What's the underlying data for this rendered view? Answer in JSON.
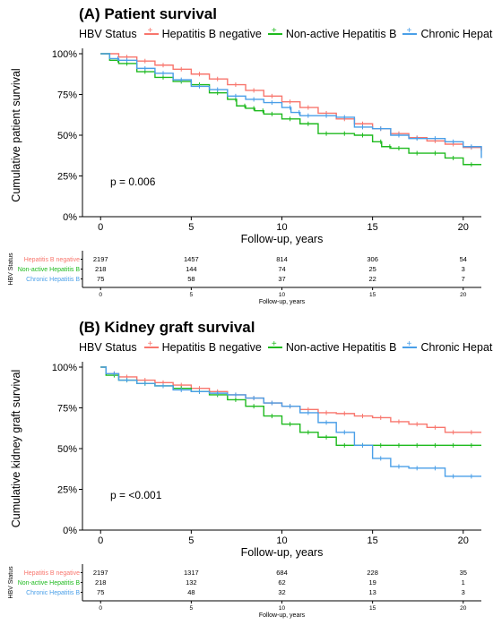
{
  "colors": {
    "neg": "#F8766D",
    "nonactive": "#1EBA1E",
    "chronic": "#4A9FE8"
  },
  "panels": [
    {
      "title": "(A) Patient survival",
      "legend_title": "HBV Status",
      "legend": [
        "Hepatitis B negative",
        "Non-active Hepatitis B",
        "Chronic Hepatitis B"
      ],
      "ylabel": "Cumulative patient survival",
      "xlabel": "Follow-up, years",
      "pvalue": "p = 0.006",
      "risk_table": {
        "side_label": "HBV Status",
        "row_labels": [
          "Hepatitis B negative",
          "Non-active Hepatitis B",
          "Chronic Hepatitis B"
        ],
        "rows": [
          [
            "2197",
            "1457",
            "814",
            "306",
            "54"
          ],
          [
            "218",
            "144",
            "74",
            "25",
            "3"
          ],
          [
            "75",
            "58",
            "37",
            "22",
            "7"
          ]
        ],
        "xticks": [
          "0",
          "5",
          "10",
          "15",
          "20"
        ],
        "xlabel": "Follow-up, years"
      }
    },
    {
      "title": "(B) Kidney graft survival",
      "legend_title": "HBV Status",
      "legend": [
        "Hepatitis B negative",
        "Non-active Hepatitis B",
        "Chronic Hepatitis B"
      ],
      "ylabel": "Cumulative kidney graft survival",
      "xlabel": "Follow-up, years",
      "pvalue": "p = <0.001",
      "risk_table": {
        "side_label": "HBV Status",
        "row_labels": [
          "Hepatitis B negative",
          "Non-active Hepatitis B",
          "Chronic Hepatitis B"
        ],
        "rows": [
          [
            "2197",
            "1317",
            "684",
            "228",
            "35"
          ],
          [
            "218",
            "132",
            "62",
            "19",
            "1"
          ],
          [
            "75",
            "48",
            "32",
            "13",
            "3"
          ]
        ],
        "xticks": [
          "0",
          "5",
          "10",
          "15",
          "20"
        ],
        "xlabel": "Follow-up, years"
      }
    }
  ],
  "chart_data": [
    {
      "type": "line",
      "title": "(A) Patient survival",
      "xlabel": "Follow-up, years",
      "ylabel": "Cumulative patient survival",
      "xlim": [
        -1,
        21
      ],
      "ylim": [
        0,
        1
      ],
      "xticks": [
        "0",
        "5",
        "10",
        "15",
        "20"
      ],
      "yticks": [
        "0%",
        "25%",
        "50%",
        "75%",
        "100%"
      ],
      "grid": false,
      "legend_position": "top",
      "series": [
        {
          "name": "Hepatitis B negative",
          "color_key": "neg",
          "x": [
            0,
            1,
            2,
            3,
            4,
            5,
            6,
            7,
            8,
            9,
            10,
            11,
            12,
            13,
            14,
            15,
            16,
            17,
            18,
            19,
            20,
            21
          ],
          "y": [
            1.0,
            0.98,
            0.955,
            0.93,
            0.905,
            0.875,
            0.845,
            0.81,
            0.775,
            0.74,
            0.705,
            0.67,
            0.635,
            0.6,
            0.57,
            0.54,
            0.51,
            0.485,
            0.465,
            0.445,
            0.425,
            0.405
          ]
        },
        {
          "name": "Non-active Hepatitis B",
          "color_key": "nonactive",
          "x": [
            0,
            0.5,
            1,
            2,
            3,
            4,
            5,
            6,
            7,
            7.5,
            8,
            8.5,
            9,
            10,
            11,
            12,
            13,
            14,
            15,
            15.5,
            16,
            17,
            18,
            19,
            20,
            21
          ],
          "y": [
            1.0,
            0.96,
            0.94,
            0.89,
            0.855,
            0.83,
            0.81,
            0.76,
            0.72,
            0.68,
            0.665,
            0.65,
            0.63,
            0.6,
            0.57,
            0.51,
            0.51,
            0.5,
            0.46,
            0.43,
            0.42,
            0.39,
            0.39,
            0.36,
            0.32,
            0.32
          ]
        },
        {
          "name": "Chronic Hepatitis B",
          "color_key": "chronic",
          "x": [
            0,
            0.5,
            1,
            2,
            3,
            4,
            5,
            6,
            7,
            8,
            9,
            10,
            10.5,
            11,
            12,
            13,
            14,
            15,
            16,
            17,
            18,
            19,
            20,
            21
          ],
          "y": [
            1.0,
            0.97,
            0.96,
            0.91,
            0.88,
            0.84,
            0.8,
            0.78,
            0.74,
            0.72,
            0.7,
            0.67,
            0.64,
            0.62,
            0.62,
            0.61,
            0.55,
            0.54,
            0.5,
            0.48,
            0.48,
            0.46,
            0.43,
            0.36
          ]
        }
      ]
    },
    {
      "type": "line",
      "title": "(B) Kidney graft survival",
      "xlabel": "Follow-up, years",
      "ylabel": "Cumulative kidney graft survival",
      "xlim": [
        -1,
        21
      ],
      "ylim": [
        0,
        1
      ],
      "xticks": [
        "0",
        "5",
        "10",
        "15",
        "20"
      ],
      "yticks": [
        "0%",
        "25%",
        "50%",
        "75%",
        "100%"
      ],
      "grid": false,
      "legend_position": "top",
      "series": [
        {
          "name": "Hepatitis B negative",
          "color_key": "neg",
          "x": [
            0,
            0.3,
            1,
            2,
            3,
            4,
            5,
            6,
            7,
            8,
            9,
            10,
            11,
            12,
            13,
            14,
            15,
            16,
            17,
            18,
            19,
            20,
            21
          ],
          "y": [
            1.0,
            0.96,
            0.94,
            0.92,
            0.905,
            0.89,
            0.87,
            0.85,
            0.83,
            0.81,
            0.78,
            0.76,
            0.74,
            0.72,
            0.715,
            0.7,
            0.69,
            0.665,
            0.65,
            0.63,
            0.6,
            0.6,
            0.6
          ]
        },
        {
          "name": "Non-active Hepatitis B",
          "color_key": "nonactive",
          "x": [
            0,
            0.3,
            1,
            2,
            3,
            4,
            5,
            6,
            7,
            8,
            9,
            10,
            11,
            12,
            13,
            14,
            15,
            16,
            17,
            18,
            19,
            20,
            21
          ],
          "y": [
            1.0,
            0.95,
            0.92,
            0.9,
            0.885,
            0.87,
            0.85,
            0.83,
            0.8,
            0.76,
            0.7,
            0.65,
            0.6,
            0.57,
            0.52,
            0.52,
            0.52,
            0.52,
            0.52,
            0.52,
            0.52,
            0.52,
            0.52
          ]
        },
        {
          "name": "Chronic Hepatitis B",
          "color_key": "chronic",
          "x": [
            0,
            0.3,
            1,
            2,
            3,
            4,
            5,
            6,
            7,
            8,
            9,
            10,
            11,
            12,
            13,
            14,
            15,
            16,
            17,
            18,
            19,
            20,
            21
          ],
          "y": [
            1.0,
            0.96,
            0.92,
            0.9,
            0.885,
            0.86,
            0.85,
            0.84,
            0.83,
            0.81,
            0.78,
            0.76,
            0.72,
            0.66,
            0.6,
            0.52,
            0.44,
            0.39,
            0.38,
            0.38,
            0.33,
            0.33,
            0.33
          ]
        }
      ]
    }
  ]
}
